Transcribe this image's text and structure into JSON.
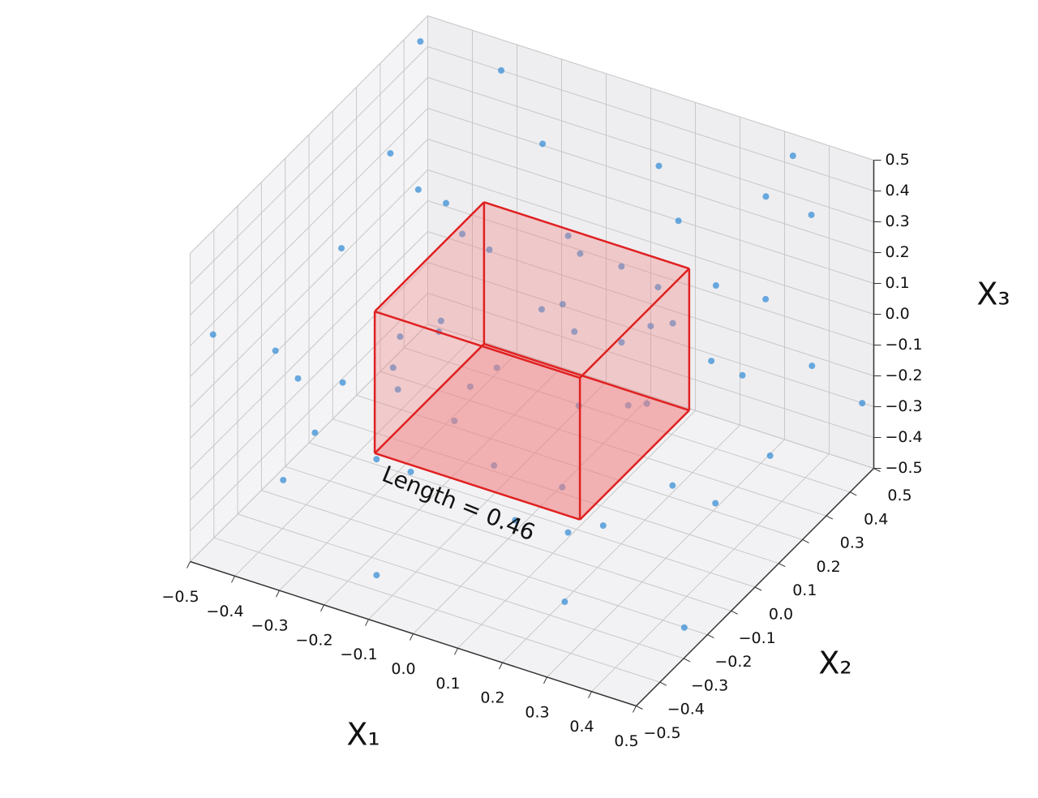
{
  "chart_data": {
    "type": "scatter3d",
    "xlabel": "X₁",
    "ylabel": "X₂",
    "zlabel": "X₃",
    "annotation": "Length = 0.46",
    "xlim": [
      -0.5,
      0.5
    ],
    "ylim": [
      -0.5,
      0.5
    ],
    "zlim": [
      -0.5,
      0.5
    ],
    "xticks": [
      {
        "value": -0.5,
        "label": "−0.5"
      },
      {
        "value": -0.4,
        "label": "−0.4"
      },
      {
        "value": -0.3,
        "label": "−0.3"
      },
      {
        "value": -0.2,
        "label": "−0.2"
      },
      {
        "value": -0.1,
        "label": "−0.1"
      },
      {
        "value": 0,
        "label": "0.0"
      },
      0.1,
      0.2,
      0.3,
      0.4,
      0.5
    ],
    "yticks": [
      {
        "value": -0.5,
        "label": "−0.5"
      },
      {
        "value": -0.4,
        "label": "−0.4"
      },
      {
        "value": -0.3,
        "label": "−0.3"
      },
      {
        "value": -0.2,
        "label": "−0.2"
      },
      {
        "value": -0.1,
        "label": "−0.1"
      },
      {
        "value": 0,
        "label": "0.0"
      },
      0.1,
      0.2,
      0.3,
      0.4,
      0.5
    ],
    "zticks": [
      {
        "value": -0.5,
        "label": "−0.5"
      },
      {
        "value": -0.4,
        "label": "−0.4"
      },
      {
        "value": -0.3,
        "label": "−0.3"
      },
      {
        "value": -0.2,
        "label": "−0.2"
      },
      {
        "value": -0.1,
        "label": "−0.1"
      },
      {
        "value": 0,
        "label": "0.0"
      },
      0.1,
      0.2,
      0.3,
      0.4,
      0.5
    ],
    "grid": true,
    "point_color": "#3a8fd6",
    "cube": {
      "length": 0.46,
      "color": "#e02020",
      "fill": "#f08080"
    },
    "points": {
      "x": [
        -0.42,
        0.35,
        -0.15,
        0.08,
        0.47,
        -0.31,
        0.21,
        -0.46,
        0.29,
        -0.08,
        0.41,
        -0.27,
        0.13,
        -0.38,
        0.44,
        -0.19,
        0.02,
        0.33,
        -0.44,
        0.26,
        -0.12,
        0.39,
        -0.35,
        0.17,
        -0.49,
        0.48,
        -0.23,
        0.06,
        0.36,
        -0.04,
        0.11,
        -0.29,
        0.45,
        -0.17,
        0.31,
        -0.41,
        0.23,
        -0.06,
        0.49,
        -0.33,
        0.14,
        -0.47,
        0.38,
        -0.21,
        0.04,
        0.27,
        -0.37,
        0.19,
        -0.13,
        0.42,
        -0.25,
        0.09,
        0.34,
        -0.45,
        0.16,
        -0.02,
        0.46,
        -0.39,
        0.24,
        -0.1
      ],
      "y": [
        0.31,
        -0.28,
        0.46,
        -0.41,
        0.12,
        -0.22,
        0.38,
        -0.05,
        0.44,
        -0.36,
        -0.47,
        0.18,
        0.29,
        0.42,
        0.35,
        -0.44,
        0.09,
        -0.12,
        0.23,
        -0.35,
        0.27,
        0.04,
        -0.39,
        -0.19,
        0.45,
        -0.26,
        0.07,
        0.48,
        0.21,
        -0.48,
        0.41,
        -0.11,
        -0.09,
        0.36,
        -0.43,
        -0.31,
        0.16,
        -0.27,
        0.47,
        0.49,
        -0.06,
        -0.46,
        0.27,
        -0.17,
        0.33,
        -0.31,
        0.11,
        0.02,
        -0.41,
        0.39,
        0.29,
        -0.24,
        0.46,
        -0.14,
        -0.46,
        0.19,
        -0.38,
        0.34,
        0.08,
        0.04
      ],
      "z": [
        0.12,
        0.44,
        -0.33,
        0.27,
        -0.18,
        0.39,
        0.05,
        -0.41,
        0.33,
        -0.12,
        0.02,
        -0.46,
        0.47,
        -0.09,
        0.41,
        0.18,
        -0.47,
        0.36,
        0.29,
        -0.39,
        0.44,
        -0.31,
        -0.25,
        0.41,
        0.46,
        -0.44,
        0.35,
        -0.22,
        -0.04,
        0.43,
        0.19,
        -0.37,
        0.28,
        -0.19,
        -0.08,
        0.08,
        -0.42,
        0.31,
        -0.27,
        0.41,
        0.46,
        0.22,
        0.17,
        -0.06,
        -0.38,
        0.22,
        -0.28,
        0.38,
        -0.44,
        -0.12,
        0.02,
        -0.29,
        0.47,
        -0.16,
        0.09,
        0.25,
        0.37,
        -0.35,
        0.29,
        -0.1
      ]
    }
  }
}
